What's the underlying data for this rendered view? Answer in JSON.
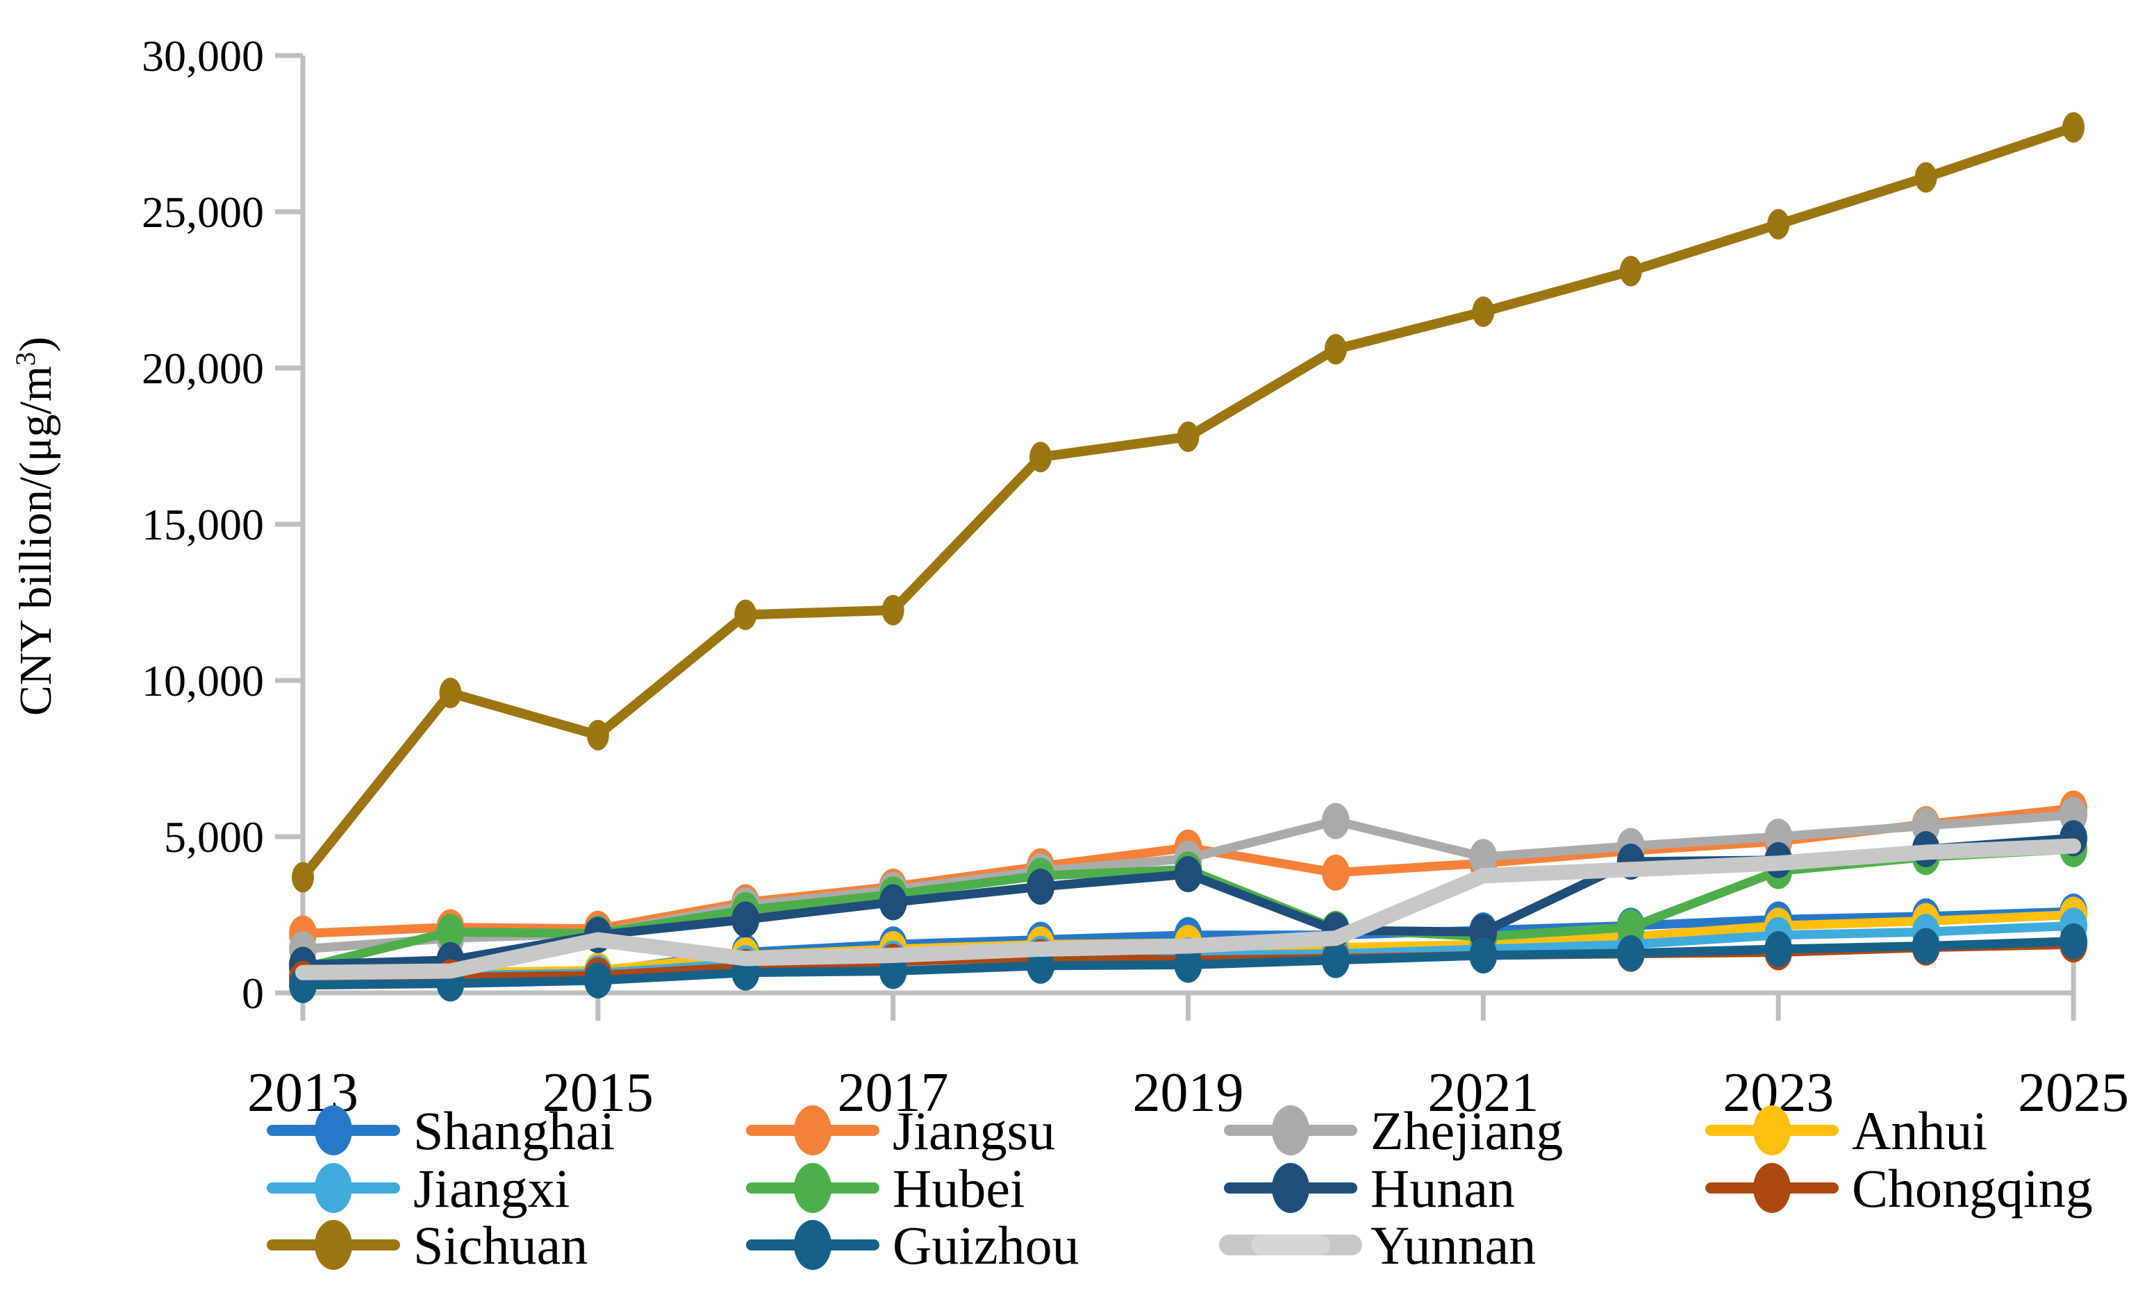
{
  "figure": {
    "background": "#FFFFFF",
    "axis_color": "#BFBFBF",
    "text_color": "#000000",
    "y_axis_title_main": "CNY billion/(μg/m",
    "y_axis_title_sup": "3",
    "y_axis_title_end": ")"
  },
  "chart_data": {
    "type": "line",
    "title": "",
    "xlabel": "",
    "ylabel": "CNY billion/(μg/m³)",
    "x": [
      2013,
      2014,
      2015,
      2016,
      2017,
      2018,
      2019,
      2020,
      2021,
      2022,
      2023,
      2024,
      2025
    ],
    "ylim": [
      0,
      30000
    ],
    "grid": false,
    "legend_position": "bottom",
    "y_ticks": [
      {
        "value": 0,
        "label": "0"
      },
      {
        "value": 5000,
        "label": "5,000"
      },
      {
        "value": 10000,
        "label": "10,000"
      },
      {
        "value": 15000,
        "label": "15,000"
      },
      {
        "value": 20000,
        "label": "20,000"
      },
      {
        "value": 25000,
        "label": "25,000"
      },
      {
        "value": 30000,
        "label": "30,000"
      }
    ],
    "x_ticks": [
      {
        "year": 2013,
        "label": "2013"
      },
      {
        "year": 2015,
        "label": "2015"
      },
      {
        "year": 2017,
        "label": "2017"
      },
      {
        "year": 2019,
        "label": "2019"
      },
      {
        "year": 2021,
        "label": "2021"
      },
      {
        "year": 2023,
        "label": "2023"
      },
      {
        "year": 2025,
        "label": "2025"
      }
    ],
    "series": [
      {
        "name": "Shanghai",
        "color": "#2878C8",
        "marker": "ellipse",
        "values": [
          560,
          620,
          680,
          1300,
          1550,
          1700,
          1850,
          1850,
          2000,
          2150,
          2350,
          2450,
          2600
        ]
      },
      {
        "name": "Jiangsu",
        "color": "#F4813A",
        "marker": "ellipse",
        "values": [
          1900,
          2100,
          2050,
          2900,
          3400,
          4050,
          4650,
          3850,
          4150,
          4550,
          4850,
          5400,
          5900
        ]
      },
      {
        "name": "Zhejiang",
        "color": "#ABABAB",
        "marker": "ellipse",
        "values": [
          1400,
          1750,
          1900,
          2800,
          3300,
          3900,
          4300,
          5500,
          4350,
          4700,
          5000,
          5350,
          5700
        ]
      },
      {
        "name": "Anhui",
        "color": "#FDC011",
        "marker": "ellipse",
        "values": [
          620,
          650,
          720,
          1200,
          1400,
          1550,
          1600,
          1450,
          1550,
          1800,
          2150,
          2300,
          2500
        ]
      },
      {
        "name": "Jiangxi",
        "color": "#41ABDC",
        "marker": "ellipse",
        "values": [
          520,
          560,
          630,
          950,
          1100,
          1250,
          1200,
          1250,
          1400,
          1550,
          1850,
          1950,
          2150
        ]
      },
      {
        "name": "Hubei",
        "color": "#4FAE4C",
        "marker": "ellipse",
        "values": [
          800,
          1950,
          1900,
          2650,
          3150,
          3750,
          3950,
          2050,
          1800,
          2100,
          3900,
          4350,
          4600
        ]
      },
      {
        "name": "Hunan",
        "color": "#1E4E79",
        "marker": "ellipse",
        "values": [
          900,
          1050,
          1850,
          2350,
          2900,
          3400,
          3800,
          2000,
          1950,
          4200,
          4250,
          4600,
          4950
        ]
      },
      {
        "name": "Chongqing",
        "color": "#AE4813",
        "marker": "ellipse",
        "values": [
          450,
          500,
          560,
          830,
          1000,
          1150,
          1050,
          1100,
          1200,
          1250,
          1300,
          1450,
          1550
        ]
      },
      {
        "name": "Sichuan",
        "color": "#9C7612",
        "marker": "ellipse",
        "values": [
          3700,
          9600,
          8250,
          12100,
          12250,
          17150,
          17800,
          20600,
          21800,
          23100,
          24600,
          26100,
          27700
        ]
      },
      {
        "name": "Guizhou",
        "color": "#176189",
        "marker": "ellipse",
        "values": [
          250,
          300,
          400,
          650,
          700,
          870,
          900,
          1050,
          1200,
          1270,
          1400,
          1500,
          1650
        ]
      },
      {
        "name": "Yunnan",
        "color": "#C8C8C8",
        "marker": "line",
        "values": [
          650,
          700,
          1700,
          1100,
          1200,
          1400,
          1500,
          1750,
          3750,
          3950,
          4150,
          4500,
          4700
        ]
      }
    ]
  }
}
